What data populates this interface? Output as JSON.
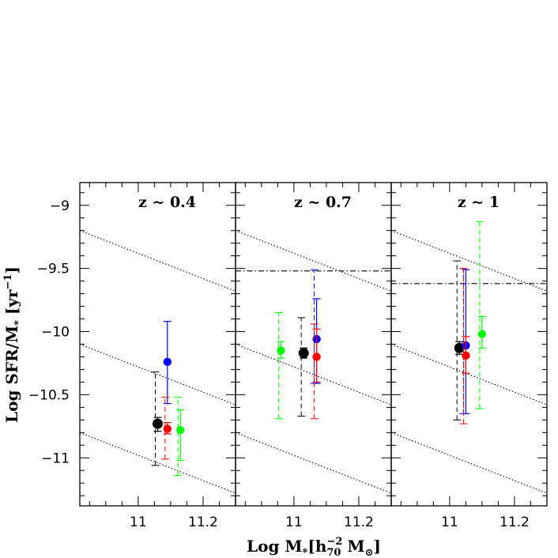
{
  "chart_data": {
    "type": "scatter",
    "xlabel": {
      "prefix": "Log  M",
      "sub1": "*",
      "bracket_open": "[h",
      "sub2": "70",
      "sup": "−2",
      "m": "M",
      "sun": "⊙",
      "bracket_close": "]"
    },
    "ylabel": "Log SFR/M* [yr⁻¹]",
    "xlim": [
      10.82,
      11.3
    ],
    "ylim": [
      -11.38,
      -8.82
    ],
    "xticks": [
      11,
      11.2
    ],
    "xtick_labels": [
      "11",
      "11.2"
    ],
    "yticks": [
      -9,
      -9.5,
      -10,
      -10.5,
      -11
    ],
    "ytick_labels": [
      "−9",
      "−9.5",
      "−10",
      "−10.5",
      "−11"
    ],
    "panels": [
      {
        "title": "z  ~  0.4",
        "diagonals": [
          [
            -9.2,
            -9.68
          ],
          [
            -10.1,
            -10.58
          ],
          [
            -10.8,
            -11.28
          ]
        ],
        "hline": null,
        "points": [
          {
            "x": 11.06,
            "y": -10.73,
            "color": "#000000",
            "size": "large",
            "err_solid": [
              -10.79,
              -10.68
            ],
            "err_dashed": [
              -11.06,
              -10.32
            ]
          },
          {
            "x": 11.09,
            "y": -10.24,
            "color": "#0000ff",
            "size": "medium",
            "err_solid": [
              -10.57,
              -9.92
            ],
            "err_dashed": null
          },
          {
            "x": 11.09,
            "y": -10.77,
            "color": "#ff0000",
            "size": "medium",
            "err_solid": [
              -10.81,
              -10.72
            ],
            "err_dashed": [
              -11.01,
              -10.52
            ]
          },
          {
            "x": 11.13,
            "y": -10.78,
            "color": "#00ff00",
            "size": "medium",
            "err_solid": [
              -11.02,
              -10.62
            ],
            "err_dashed": [
              -11.14,
              -10.52
            ]
          }
        ]
      },
      {
        "title": "z  ~  0.7",
        "diagonals": [
          [
            -9.2,
            -9.68
          ],
          [
            -10.1,
            -10.58
          ],
          [
            -10.8,
            -11.28
          ]
        ],
        "hline": -9.52,
        "points": [
          {
            "x": 10.96,
            "y": -10.15,
            "color": "#00ff00",
            "size": "medium",
            "err_solid": [
              -10.21,
              -10.08
            ],
            "err_dashed": [
              -10.69,
              -9.85
            ]
          },
          {
            "x": 11.03,
            "y": -10.17,
            "color": "#000000",
            "size": "large",
            "err_solid": [
              -10.21,
              -10.13
            ],
            "err_dashed": [
              -10.67,
              -9.89
            ]
          },
          {
            "x": 11.07,
            "y": -10.06,
            "color": "#0000ff",
            "size": "medium",
            "err_solid": [
              -10.41,
              -9.74
            ],
            "err_dashed": [
              -10.41,
              -9.51
            ]
          },
          {
            "x": 11.07,
            "y": -10.2,
            "color": "#ff0000",
            "size": "medium",
            "err_solid": [
              -10.4,
              -9.98
            ],
            "err_dashed": [
              -10.69,
              -9.94
            ]
          }
        ]
      },
      {
        "title": "z  ~  1",
        "diagonals": [
          [
            -9.2,
            -9.68
          ],
          [
            -10.1,
            -10.58
          ],
          [
            -10.8,
            -11.28
          ]
        ],
        "hline": -9.62,
        "points": [
          {
            "x": 11.03,
            "y": -10.13,
            "color": "#000000",
            "size": "large",
            "err_solid": [
              -10.18,
              -10.08
            ],
            "err_dashed": [
              -10.7,
              -9.44
            ]
          },
          {
            "x": 11.05,
            "y": -10.11,
            "color": "#0000ff",
            "size": "medium",
            "err_solid": [
              -10.65,
              -9.51
            ],
            "err_dashed": [
              -10.65,
              -9.5
            ]
          },
          {
            "x": 11.05,
            "y": -10.19,
            "color": "#ff0000",
            "size": "medium",
            "err_solid": [
              -10.33,
              -10.04
            ],
            "err_dashed": [
              -10.73,
              -9.5
            ]
          },
          {
            "x": 11.1,
            "y": -10.02,
            "color": "#00ff00",
            "size": "medium",
            "err_solid": [
              -10.13,
              -9.88
            ],
            "err_dashed": [
              -10.61,
              -9.13
            ]
          }
        ]
      }
    ]
  }
}
